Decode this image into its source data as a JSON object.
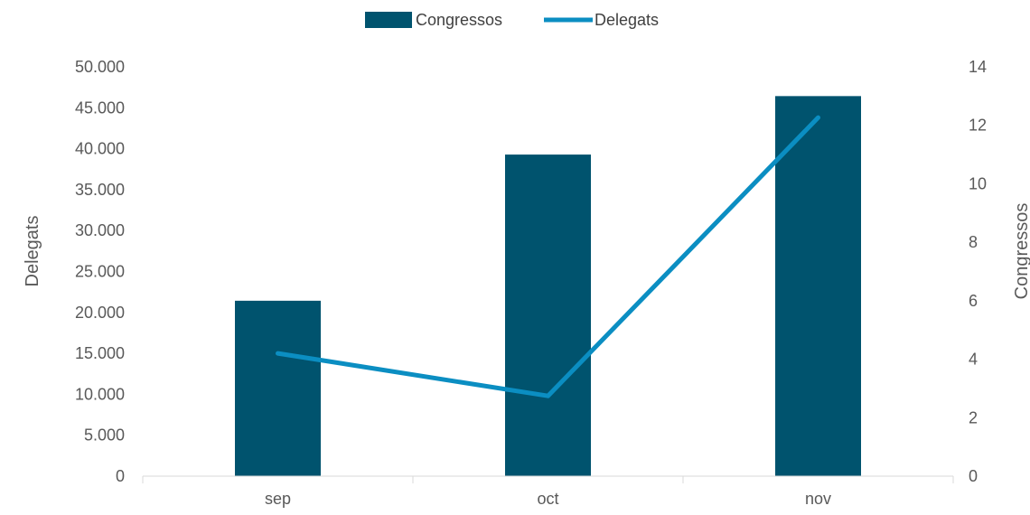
{
  "chart_data": {
    "type": "bar",
    "categories": [
      "sep",
      "oct",
      "nov"
    ],
    "series": [
      {
        "name": "Congressos",
        "type": "bar",
        "axis": "right",
        "values": [
          6,
          11,
          13
        ],
        "color": "#00536E"
      },
      {
        "name": "Delegats",
        "type": "line",
        "axis": "left",
        "values": [
          15000,
          9800,
          43800
        ],
        "color": "#0B8EC2"
      }
    ],
    "ylabel_left": "Delegats",
    "ylabel_right": "Congressos",
    "ylim_left": [
      0,
      50000
    ],
    "ylim_right": [
      0,
      14
    ],
    "left_ticks": [
      "0",
      "5.000",
      "10.000",
      "15.000",
      "20.000",
      "25.000",
      "30.000",
      "35.000",
      "40.000",
      "45.000",
      "50.000"
    ],
    "right_ticks": [
      "0",
      "2",
      "4",
      "6",
      "8",
      "10",
      "12",
      "14"
    ],
    "legend_position": "top",
    "grid": false
  }
}
